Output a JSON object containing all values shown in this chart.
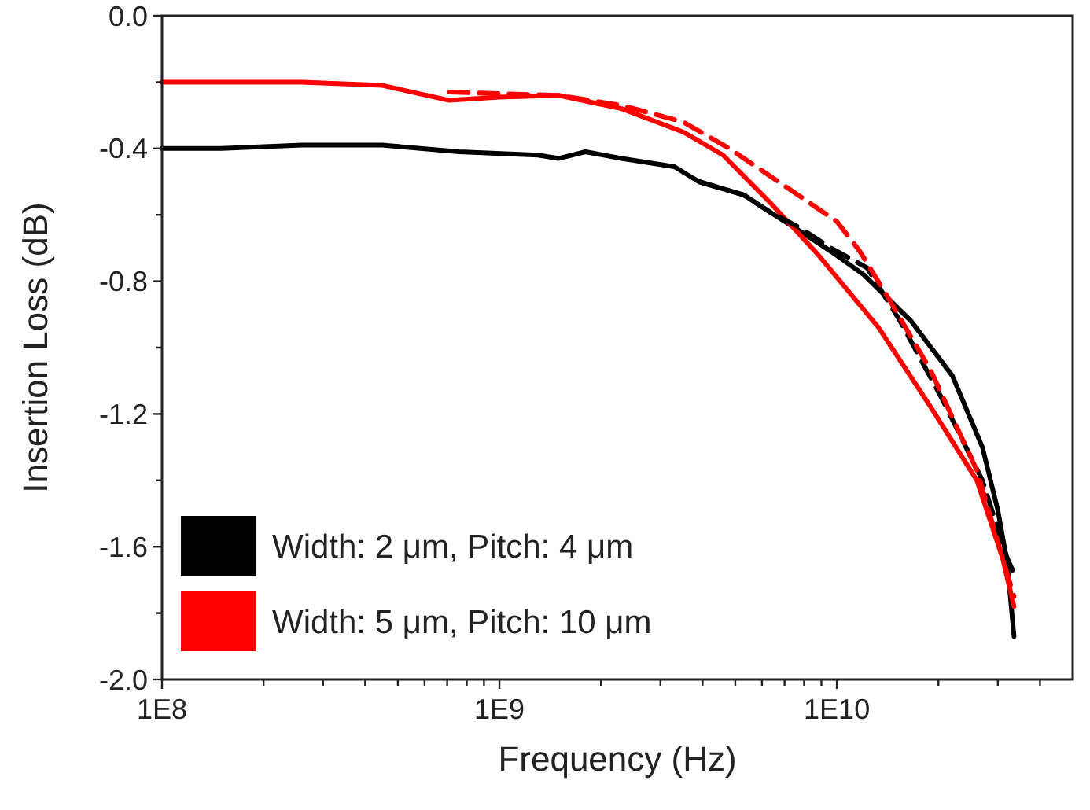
{
  "chart_data": {
    "type": "line",
    "xlabel": "Frequency (Hz)",
    "ylabel": "Insertion Loss (dB)",
    "log": "x",
    "xlim": [
      100000000.0,
      50000000000.0
    ],
    "ylim": [
      -2.0,
      0.0
    ],
    "xticks": [
      {
        "value": 100000000.0,
        "label": "1E8"
      },
      {
        "value": 200000000.0,
        "label": null
      },
      {
        "value": 300000000.0,
        "label": null
      },
      {
        "value": 400000000.0,
        "label": null
      },
      {
        "value": 500000000.0,
        "label": null
      },
      {
        "value": 600000000.0,
        "label": null
      },
      {
        "value": 700000000.0,
        "label": null
      },
      {
        "value": 800000000.0,
        "label": null
      },
      {
        "value": 900000000.0,
        "label": null
      },
      {
        "value": 1000000000.0,
        "label": "1E9"
      },
      {
        "value": 2000000000.0,
        "label": null
      },
      {
        "value": 3000000000.0,
        "label": null
      },
      {
        "value": 4000000000.0,
        "label": null
      },
      {
        "value": 5000000000.0,
        "label": null
      },
      {
        "value": 6000000000.0,
        "label": null
      },
      {
        "value": 7000000000.0,
        "label": null
      },
      {
        "value": 8000000000.0,
        "label": null
      },
      {
        "value": 9000000000.0,
        "label": null
      },
      {
        "value": 10000000000.0,
        "label": "1E10"
      },
      {
        "value": 20000000000.0,
        "label": null
      },
      {
        "value": 30000000000.0,
        "label": null
      },
      {
        "value": 40000000000.0,
        "label": null
      }
    ],
    "yticks": [
      {
        "value": -2.0,
        "label": "-2.0"
      },
      {
        "value": -1.8,
        "label": null
      },
      {
        "value": -1.6,
        "label": "-1.6"
      },
      {
        "value": -1.4,
        "label": null
      },
      {
        "value": -1.2,
        "label": "-1.2"
      },
      {
        "value": -1.0,
        "label": null
      },
      {
        "value": -0.8,
        "label": "-0.8"
      },
      {
        "value": -0.6,
        "label": null
      },
      {
        "value": -0.4,
        "label": "-0.4"
      },
      {
        "value": -0.2,
        "label": null
      },
      {
        "value": 0.0,
        "label": "0.0"
      }
    ],
    "legend": "bottom left",
    "grid": false,
    "series": [
      {
        "name": "Width: 2 μm, Pitch: 4 μm",
        "color": "#000000",
        "line_style": "solid",
        "x": [
          100000000.0,
          150000000.0,
          260000000.0,
          450000000.0,
          760000000.0,
          1300000000.0,
          1500000000.0,
          1800000000.0,
          2300000000.0,
          3300000000.0,
          3900000000.0,
          5300000000.0,
          6300000000.0,
          7800000000.0,
          9600000000.0,
          12000000000.0,
          16600000000.0,
          22000000000.0,
          27000000000.0,
          30000000000.0,
          32000000000.0,
          33500000000.0
        ],
        "values": [
          -0.4,
          -0.4,
          -0.39,
          -0.39,
          -0.41,
          -0.42,
          -0.43,
          -0.41,
          -0.43,
          -0.455,
          -0.5,
          -0.54,
          -0.59,
          -0.65,
          -0.71,
          -0.78,
          -0.92,
          -1.085,
          -1.3,
          -1.49,
          -1.65,
          -1.87
        ]
      },
      {
        "name": "Width: 5 μm, Pitch: 10 μm",
        "color": "#ff0000",
        "line_style": "solid",
        "x": [
          100000000.0,
          150000000.0,
          260000000.0,
          450000000.0,
          710000000.0,
          1000000000.0,
          1500000000.0,
          2300000000.0,
          3500000000.0,
          4600000000.0,
          6300000000.0,
          8800000000.0,
          13300000000.0,
          19000000000.0,
          26000000000.0,
          31000000000.0,
          33500000000.0
        ],
        "values": [
          -0.2,
          -0.2,
          -0.2,
          -0.21,
          -0.255,
          -0.245,
          -0.24,
          -0.28,
          -0.35,
          -0.42,
          -0.56,
          -0.72,
          -0.94,
          -1.18,
          -1.4,
          -1.635,
          -1.78
        ]
      },
      {
        "color": "#000000",
        "line_style": "dashed",
        "x": [
          3900000000.0,
          5300000000.0,
          6300000000.0,
          7800000000.0,
          9600000000.0,
          12300000000.0,
          15400000000.0,
          20400000000.0,
          27000000000.0,
          32000000000.0,
          33500000000.0
        ],
        "values": [
          -0.5,
          -0.54,
          -0.59,
          -0.64,
          -0.7,
          -0.76,
          -0.92,
          -1.15,
          -1.4,
          -1.635,
          -1.68
        ]
      },
      {
        "color": "#ff0000",
        "line_style": "dashed",
        "x": [
          710000000.0,
          1000000000.0,
          1500000000.0,
          2300000000.0,
          3500000000.0,
          4800000000.0,
          7800000000.0,
          10000000000.0,
          11700000000.0,
          14200000000.0,
          19000000000.0,
          26000000000.0,
          33500000000.0
        ],
        "values": [
          -0.23,
          -0.235,
          -0.24,
          -0.27,
          -0.32,
          -0.4,
          -0.545,
          -0.62,
          -0.71,
          -0.85,
          -1.07,
          -1.37,
          -1.75
        ]
      }
    ]
  }
}
